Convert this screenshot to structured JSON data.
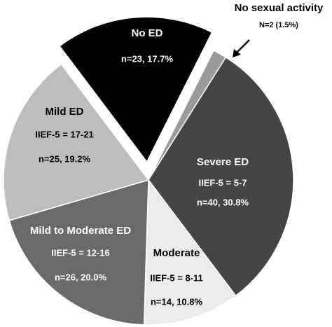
{
  "chart_data": {
    "type": "pie",
    "categories": [
      "No ED",
      "No sexual activity",
      "Severe ED",
      "Moderate",
      "Mild to Moderate ED",
      "Mild ED"
    ],
    "sublabels": [
      null,
      null,
      "IIEF-5 = 5-7",
      "IIEF-5 = 8-11",
      "IIEF-5 = 12-16",
      "IIEF-5 = 17-21"
    ],
    "values": [
      23,
      2,
      40,
      14,
      26,
      25
    ],
    "value_labels": [
      "n=23, 17.7%",
      "N=2 (1.5%)",
      "n=40, 30.8%",
      "n=14, 10.8%",
      "n=26, 20.0%",
      "n=25, 19.2%"
    ],
    "colors": [
      "#000000",
      "#9a9a9a",
      "#454545",
      "#ececec",
      "#6a6a6a",
      "#bdbdbd"
    ]
  }
}
